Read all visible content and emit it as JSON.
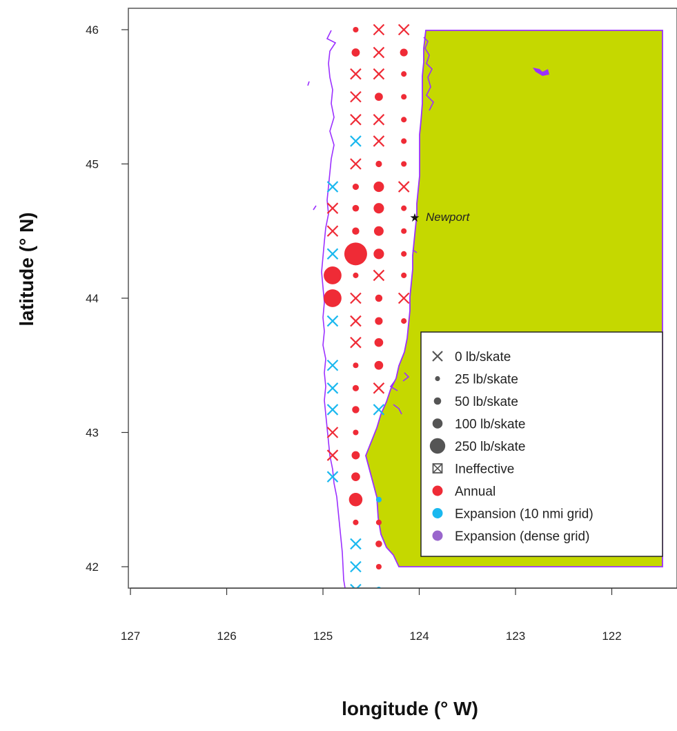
{
  "chart_data": {
    "type": "map",
    "xlabel": "longitude (° W)",
    "ylabel": "latitude (° N)",
    "xlim": [
      127,
      121.5
    ],
    "ylim": [
      41.9,
      46.2
    ],
    "xticks": [
      127,
      126,
      125,
      124,
      123,
      122
    ],
    "yticks": [
      42,
      43,
      44,
      45,
      46
    ],
    "land_color": "#c5d800",
    "coast_color": "#9b30ff",
    "city": {
      "name": "Newport",
      "lon": 124.05,
      "lat": 44.6
    },
    "legend": {
      "items": [
        {
          "label": "0 lb/skate",
          "symbol": "x"
        },
        {
          "label": "25 lb/skate",
          "symbol": "circle",
          "catch": 25
        },
        {
          "label": "50 lb/skate",
          "symbol": "circle",
          "catch": 50
        },
        {
          "label": "100 lb/skate",
          "symbol": "circle",
          "catch": 100
        },
        {
          "label": "250 lb/skate",
          "symbol": "circle",
          "catch": 250
        },
        {
          "label": "Ineffective",
          "symbol": "boxx"
        },
        {
          "label": "Annual",
          "symbol": "dot",
          "color": "#ef2b36"
        },
        {
          "label": "Expansion (10 nmi grid)",
          "symbol": "dot",
          "color": "#1ab8ef"
        },
        {
          "label": "Expansion (dense grid)",
          "symbol": "dot",
          "color": "#9966cc"
        }
      ]
    },
    "colors": {
      "annual": "#ef2b36",
      "expansion": "#1ab8ef",
      "dense": "#9966cc",
      "legend_gray": "#555555"
    },
    "stations": [
      {
        "lon": 124.16,
        "lat": 46.0,
        "catch": 0,
        "group": "annual"
      },
      {
        "lon": 124.42,
        "lat": 46.0,
        "catch": 0,
        "group": "annual"
      },
      {
        "lon": 124.66,
        "lat": 46.0,
        "catch": 3,
        "group": "annual"
      },
      {
        "lon": 124.16,
        "lat": 45.83,
        "catch": 10,
        "group": "annual"
      },
      {
        "lon": 124.42,
        "lat": 45.83,
        "catch": 0,
        "group": "annual"
      },
      {
        "lon": 124.66,
        "lat": 45.83,
        "catch": 12,
        "group": "annual"
      },
      {
        "lon": 124.16,
        "lat": 45.67,
        "catch": 3,
        "group": "annual"
      },
      {
        "lon": 124.42,
        "lat": 45.67,
        "catch": 0,
        "group": "annual"
      },
      {
        "lon": 124.66,
        "lat": 45.67,
        "catch": 0,
        "group": "annual"
      },
      {
        "lon": 124.16,
        "lat": 45.5,
        "catch": 3,
        "group": "annual"
      },
      {
        "lon": 124.42,
        "lat": 45.5,
        "catch": 12,
        "group": "annual"
      },
      {
        "lon": 124.66,
        "lat": 45.5,
        "catch": 0,
        "group": "annual"
      },
      {
        "lon": 124.16,
        "lat": 45.33,
        "catch": 3,
        "group": "annual"
      },
      {
        "lon": 124.42,
        "lat": 45.33,
        "catch": 0,
        "group": "annual"
      },
      {
        "lon": 124.66,
        "lat": 45.33,
        "catch": 0,
        "group": "annual"
      },
      {
        "lon": 124.16,
        "lat": 45.17,
        "catch": 3,
        "group": "annual"
      },
      {
        "lon": 124.42,
        "lat": 45.17,
        "catch": 0,
        "group": "annual"
      },
      {
        "lon": 124.66,
        "lat": 45.17,
        "catch": 0,
        "group": "expansion"
      },
      {
        "lon": 124.16,
        "lat": 45.0,
        "catch": 3,
        "group": "annual"
      },
      {
        "lon": 124.42,
        "lat": 45.0,
        "catch": 5,
        "group": "annual"
      },
      {
        "lon": 124.66,
        "lat": 45.0,
        "catch": 0,
        "group": "annual"
      },
      {
        "lon": 124.16,
        "lat": 44.83,
        "catch": 0,
        "group": "annual"
      },
      {
        "lon": 124.42,
        "lat": 44.83,
        "catch": 25,
        "group": "annual"
      },
      {
        "lon": 124.66,
        "lat": 44.83,
        "catch": 5,
        "group": "annual"
      },
      {
        "lon": 124.9,
        "lat": 44.83,
        "catch": 0,
        "group": "expansion"
      },
      {
        "lon": 124.16,
        "lat": 44.67,
        "catch": 3,
        "group": "annual"
      },
      {
        "lon": 124.42,
        "lat": 44.67,
        "catch": 25,
        "group": "annual"
      },
      {
        "lon": 124.66,
        "lat": 44.67,
        "catch": 6,
        "group": "annual"
      },
      {
        "lon": 124.9,
        "lat": 44.67,
        "catch": 0,
        "group": "annual"
      },
      {
        "lon": 124.16,
        "lat": 44.5,
        "catch": 3,
        "group": "annual"
      },
      {
        "lon": 124.42,
        "lat": 44.5,
        "catch": 20,
        "group": "annual"
      },
      {
        "lon": 124.66,
        "lat": 44.5,
        "catch": 8,
        "group": "annual"
      },
      {
        "lon": 124.9,
        "lat": 44.5,
        "catch": 0,
        "group": "annual"
      },
      {
        "lon": 124.16,
        "lat": 44.33,
        "catch": 3,
        "group": "annual"
      },
      {
        "lon": 124.42,
        "lat": 44.33,
        "catch": 25,
        "group": "annual"
      },
      {
        "lon": 124.66,
        "lat": 44.33,
        "catch": 250,
        "group": "annual"
      },
      {
        "lon": 124.9,
        "lat": 44.33,
        "catch": 0,
        "group": "expansion"
      },
      {
        "lon": 124.16,
        "lat": 44.17,
        "catch": 3,
        "group": "annual"
      },
      {
        "lon": 124.42,
        "lat": 44.17,
        "catch": 0,
        "group": "annual"
      },
      {
        "lon": 124.66,
        "lat": 44.17,
        "catch": 3,
        "group": "annual"
      },
      {
        "lon": 124.9,
        "lat": 44.17,
        "catch": 100,
        "group": "annual"
      },
      {
        "lon": 124.16,
        "lat": 44.0,
        "catch": 0,
        "group": "annual"
      },
      {
        "lon": 124.42,
        "lat": 44.0,
        "catch": 8,
        "group": "annual"
      },
      {
        "lon": 124.66,
        "lat": 44.0,
        "catch": 0,
        "group": "annual"
      },
      {
        "lon": 124.9,
        "lat": 44.0,
        "catch": 100,
        "group": "annual"
      },
      {
        "lon": 124.16,
        "lat": 43.83,
        "catch": 3,
        "group": "annual"
      },
      {
        "lon": 124.42,
        "lat": 43.83,
        "catch": 10,
        "group": "annual"
      },
      {
        "lon": 124.66,
        "lat": 43.83,
        "catch": 0,
        "group": "annual"
      },
      {
        "lon": 124.9,
        "lat": 43.83,
        "catch": 0,
        "group": "expansion"
      },
      {
        "lon": 124.42,
        "lat": 43.67,
        "catch": 15,
        "group": "annual"
      },
      {
        "lon": 124.66,
        "lat": 43.67,
        "catch": 0,
        "group": "annual"
      },
      {
        "lon": 124.42,
        "lat": 43.5,
        "catch": 15,
        "group": "annual"
      },
      {
        "lon": 124.66,
        "lat": 43.5,
        "catch": 3,
        "group": "annual"
      },
      {
        "lon": 124.9,
        "lat": 43.5,
        "catch": 0,
        "group": "expansion"
      },
      {
        "lon": 124.42,
        "lat": 43.33,
        "catch": 0,
        "group": "annual"
      },
      {
        "lon": 124.66,
        "lat": 43.33,
        "catch": 5,
        "group": "annual"
      },
      {
        "lon": 124.9,
        "lat": 43.33,
        "catch": 0,
        "group": "expansion"
      },
      {
        "lon": 124.42,
        "lat": 43.17,
        "catch": 0,
        "group": "expansion"
      },
      {
        "lon": 124.66,
        "lat": 43.17,
        "catch": 8,
        "group": "annual"
      },
      {
        "lon": 124.9,
        "lat": 43.17,
        "catch": 0,
        "group": "expansion"
      },
      {
        "lon": 124.66,
        "lat": 43.0,
        "catch": 3,
        "group": "annual"
      },
      {
        "lon": 124.9,
        "lat": 43.0,
        "catch": 0,
        "group": "annual"
      },
      {
        "lon": 124.66,
        "lat": 42.83,
        "catch": 12,
        "group": "annual"
      },
      {
        "lon": 124.9,
        "lat": 42.83,
        "catch": 0,
        "group": "annual"
      },
      {
        "lon": 124.66,
        "lat": 42.67,
        "catch": 15,
        "group": "annual"
      },
      {
        "lon": 124.9,
        "lat": 42.67,
        "catch": 0,
        "group": "expansion"
      },
      {
        "lon": 124.42,
        "lat": 42.5,
        "catch": 3,
        "group": "expansion"
      },
      {
        "lon": 124.66,
        "lat": 42.5,
        "catch": 50,
        "group": "annual"
      },
      {
        "lon": 124.42,
        "lat": 42.33,
        "catch": 3,
        "group": "annual"
      },
      {
        "lon": 124.66,
        "lat": 42.33,
        "catch": 3,
        "group": "annual"
      },
      {
        "lon": 124.42,
        "lat": 42.17,
        "catch": 6,
        "group": "annual"
      },
      {
        "lon": 124.66,
        "lat": 42.17,
        "catch": 0,
        "group": "expansion"
      },
      {
        "lon": 124.42,
        "lat": 42.0,
        "catch": 3,
        "group": "annual"
      },
      {
        "lon": 124.66,
        "lat": 42.0,
        "catch": 0,
        "group": "expansion"
      },
      {
        "lon": 124.42,
        "lat": 41.83,
        "catch": 3,
        "group": "expansion"
      },
      {
        "lon": 124.66,
        "lat": 41.83,
        "catch": 0,
        "group": "expansion"
      }
    ]
  }
}
